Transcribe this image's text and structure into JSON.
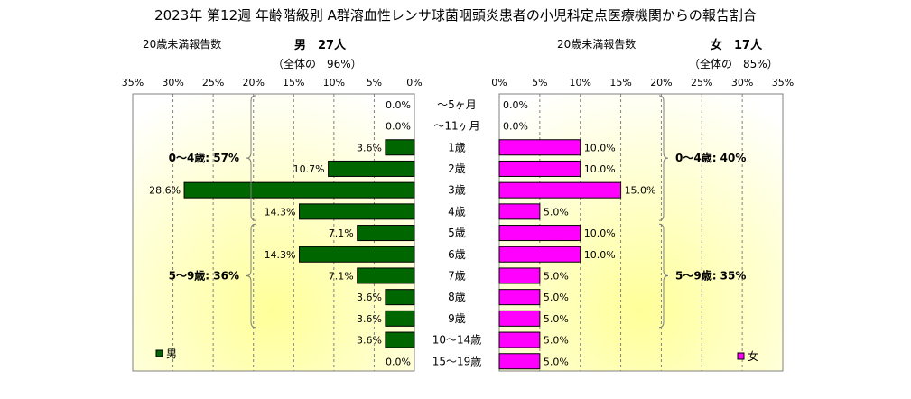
{
  "chart_data": {
    "type": "bar",
    "title": "2023年 第12週 年齢階級別 A群溶血性レンサ球菌咽頭炎患者の小児科定点医療機関からの報告割合",
    "categories": [
      "～5ヶ月",
      "～11ヶ月",
      "1歳",
      "2歳",
      "3歳",
      "4歳",
      "5歳",
      "6歳",
      "7歳",
      "8歳",
      "9歳",
      "10～14歳",
      "15～19歳"
    ],
    "xlim": [
      0,
      35
    ],
    "xticks": [
      "0%",
      "5%",
      "10%",
      "15%",
      "20%",
      "25%",
      "30%",
      "35%"
    ],
    "series": [
      {
        "name": "男",
        "side": "left",
        "color": "#006600",
        "values": [
          0.0,
          0.0,
          3.6,
          10.7,
          28.6,
          14.3,
          7.1,
          14.3,
          7.1,
          3.6,
          3.6,
          3.6,
          0.0
        ],
        "labels": [
          "0.0%",
          "0.0%",
          "3.6%",
          "10.7%",
          "28.6%",
          "14.3%",
          "7.1%",
          "14.3%",
          "7.1%",
          "3.6%",
          "3.6%",
          "3.6%",
          "0.0%"
        ],
        "under20_label": "20歳未満報告数",
        "count_label": "男　27人",
        "share_label": "（全体の　96%）",
        "group_labels": [
          "0～4歳: 57%",
          "5～9歳: 36%"
        ]
      },
      {
        "name": "女",
        "side": "right",
        "color": "#ff00ff",
        "values": [
          0.0,
          0.0,
          10.0,
          10.0,
          15.0,
          5.0,
          10.0,
          10.0,
          5.0,
          5.0,
          5.0,
          5.0,
          5.0
        ],
        "labels": [
          "0.0%",
          "0.0%",
          "10.0%",
          "10.0%",
          "15.0%",
          "5.0%",
          "10.0%",
          "10.0%",
          "5.0%",
          "5.0%",
          "5.0%",
          "5.0%",
          "5.0%"
        ],
        "under20_label": "20歳未満報告数",
        "count_label": "女　17人",
        "share_label": "（全体の　85%）",
        "group_labels": [
          "0～4歳: 40%",
          "5～9歳: 35%"
        ]
      }
    ],
    "legend": [
      "男",
      "女"
    ],
    "legend_placement": "bottom-corners",
    "grid": true
  }
}
